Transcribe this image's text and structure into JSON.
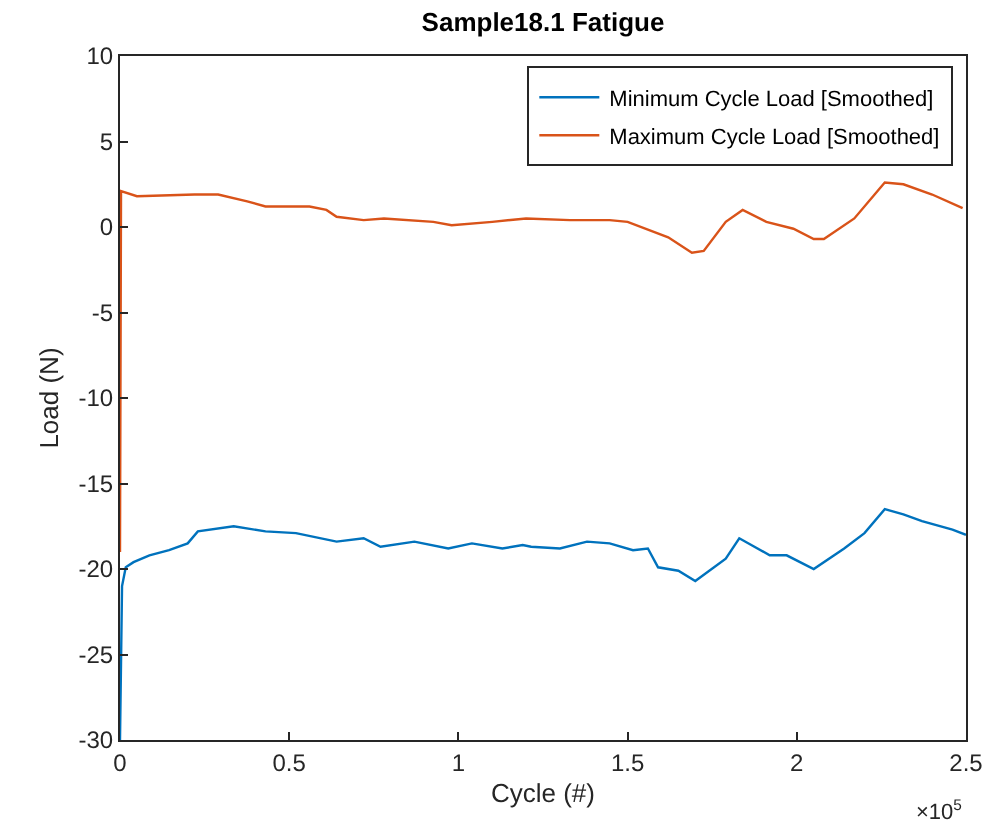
{
  "chart_data": {
    "type": "line",
    "title": "Sample18.1 Fatigue",
    "xlabel": "Cycle (#)",
    "ylabel": "Load (N)",
    "xlim": [
      0,
      2.5
    ],
    "xticks": [
      0,
      0.5,
      1,
      1.5,
      2,
      2.5
    ],
    "ylim": [
      -30,
      10
    ],
    "yticks": [
      -30,
      -25,
      -20,
      -15,
      -10,
      -5,
      0,
      5,
      10
    ],
    "legend": "top right",
    "line_style": "solid",
    "marker": "none",
    "annotations": [
      "×10$^{5}$"
    ],
    "series": [
      {
        "name": "Minimum Cycle Load [Smoothed]",
        "color": "#0072bd",
        "x": [
          0,
          0.006,
          0.017,
          0.04,
          0.087,
          0.145,
          0.2,
          0.23,
          0.336,
          0.43,
          0.52,
          0.64,
          0.72,
          0.77,
          0.87,
          0.97,
          1.04,
          1.13,
          1.19,
          1.215,
          1.3,
          1.38,
          1.447,
          1.516,
          1.56,
          1.59,
          1.65,
          1.7,
          1.79,
          1.83,
          1.92,
          1.97,
          2.05,
          2.14,
          2.2,
          2.26,
          2.315,
          2.37,
          2.46,
          2.5
        ],
        "values": [
          -30,
          -21,
          -19.9,
          -19.6,
          -19.2,
          -18.9,
          -18.5,
          -17.8,
          -17.5,
          -17.8,
          -17.9,
          -18.4,
          -18.2,
          -18.7,
          -18.4,
          -18.8,
          -18.5,
          -18.8,
          -18.6,
          -18.7,
          -18.8,
          -18.4,
          -18.5,
          -18.9,
          -18.8,
          -19.9,
          -20.1,
          -20.7,
          -19.4,
          -18.2,
          -19.2,
          -19.2,
          -20,
          -18.8,
          -17.9,
          -16.5,
          -16.8,
          -17.2,
          -17.7,
          -18
        ]
      },
      {
        "name": "Maximum Cycle Load [Smoothed]",
        "color": "#d95319",
        "x": [
          0,
          0.003,
          0.05,
          0.22,
          0.29,
          0.376,
          0.43,
          0.56,
          0.61,
          0.64,
          0.72,
          0.78,
          0.926,
          0.98,
          1.1,
          1.2,
          1.33,
          1.447,
          1.5,
          1.62,
          1.69,
          1.725,
          1.79,
          1.84,
          1.91,
          1.99,
          2.05,
          2.08,
          2.17,
          2.26,
          2.315,
          2.4,
          2.49
        ],
        "values": [
          -19,
          2.1,
          1.8,
          1.9,
          1.9,
          1.5,
          1.2,
          1.2,
          1,
          0.6,
          0.4,
          0.5,
          0.3,
          0.1,
          0.3,
          0.5,
          0.4,
          0.4,
          0.3,
          -0.6,
          -1.5,
          -1.4,
          0.3,
          1,
          0.3,
          -0.1,
          -0.7,
          -0.7,
          0.5,
          2.6,
          2.5,
          1.9,
          1.1
        ]
      }
    ]
  }
}
